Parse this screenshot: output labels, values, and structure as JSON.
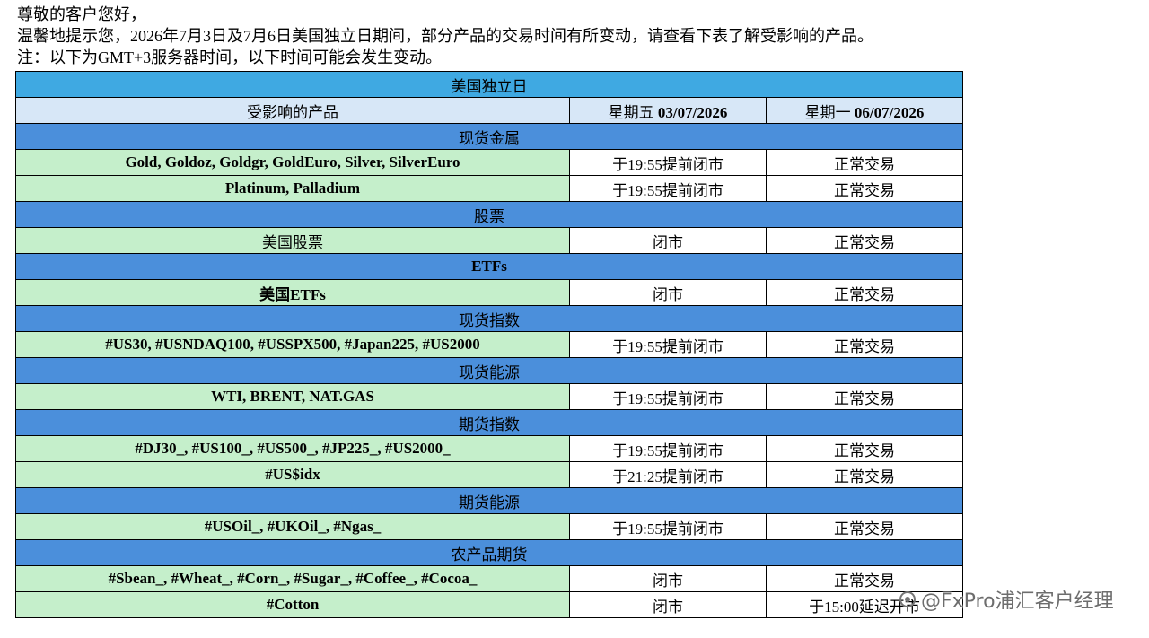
{
  "greeting": {
    "lines": [
      "尊敬的客户您好，",
      "温馨地提示您，2026年7月3日及7月6日美国独立日期间，部分产品的交易时间有所变动，请查看下表了解受影响的产品。",
      "注：以下为GMT+3服务器时间，以下时间可能会发生变动。"
    ]
  },
  "table": {
    "title": "美国独立日",
    "header": {
      "product": "受影响的产品",
      "columns": [
        {
          "day": "星期五",
          "date": "03/07/2026"
        },
        {
          "day": "星期一",
          "date": "06/07/2026"
        }
      ]
    },
    "sections": [
      {
        "name": "现货金属",
        "rows": [
          [
            "Gold, Goldoz, Goldgr, GoldEuro, Silver, SilverEuro",
            "于19:55提前闭市",
            "正常交易"
          ],
          [
            "Platinum, Palladium",
            "于19:55提前闭市",
            "正常交易"
          ]
        ]
      },
      {
        "name": "股票",
        "rows": [
          [
            "美国股票",
            "闭市",
            "正常交易"
          ]
        ]
      },
      {
        "name": "ETFs",
        "rows": [
          [
            "美国ETFs",
            "闭市",
            "正常交易"
          ]
        ]
      },
      {
        "name": "现货指数",
        "rows": [
          [
            "#US30, #USNDAQ100, #USSPX500, #Japan225, #US2000",
            "于19:55提前闭市",
            "正常交易"
          ]
        ]
      },
      {
        "name": "现货能源",
        "rows": [
          [
            "WTI, BRENT, NAT.GAS",
            "于19:55提前闭市",
            "正常交易"
          ]
        ]
      },
      {
        "name": "期货指数",
        "rows": [
          [
            "#DJ30_, #US100_, #US500_, #JP225_, #US2000_",
            "于19:55提前闭市",
            "正常交易"
          ],
          [
            "#US$idx",
            "于21:25提前闭市",
            "正常交易"
          ]
        ]
      },
      {
        "name": "期货能源",
        "rows": [
          [
            "#USOil_, #UKOil_, #Ngas_",
            "于19:55提前闭市",
            "正常交易"
          ]
        ]
      },
      {
        "name": "农产品期货",
        "rows": [
          [
            "#Sbean_, #Wheat_, #Corn_, #Sugar_, #Coffee_, #Cocoa_",
            "闭市",
            "正常交易"
          ],
          [
            "#Cotton",
            "闭市",
            "于15:00延迟开市"
          ]
        ]
      }
    ]
  },
  "watermark": "@FxPro浦汇客户经理"
}
